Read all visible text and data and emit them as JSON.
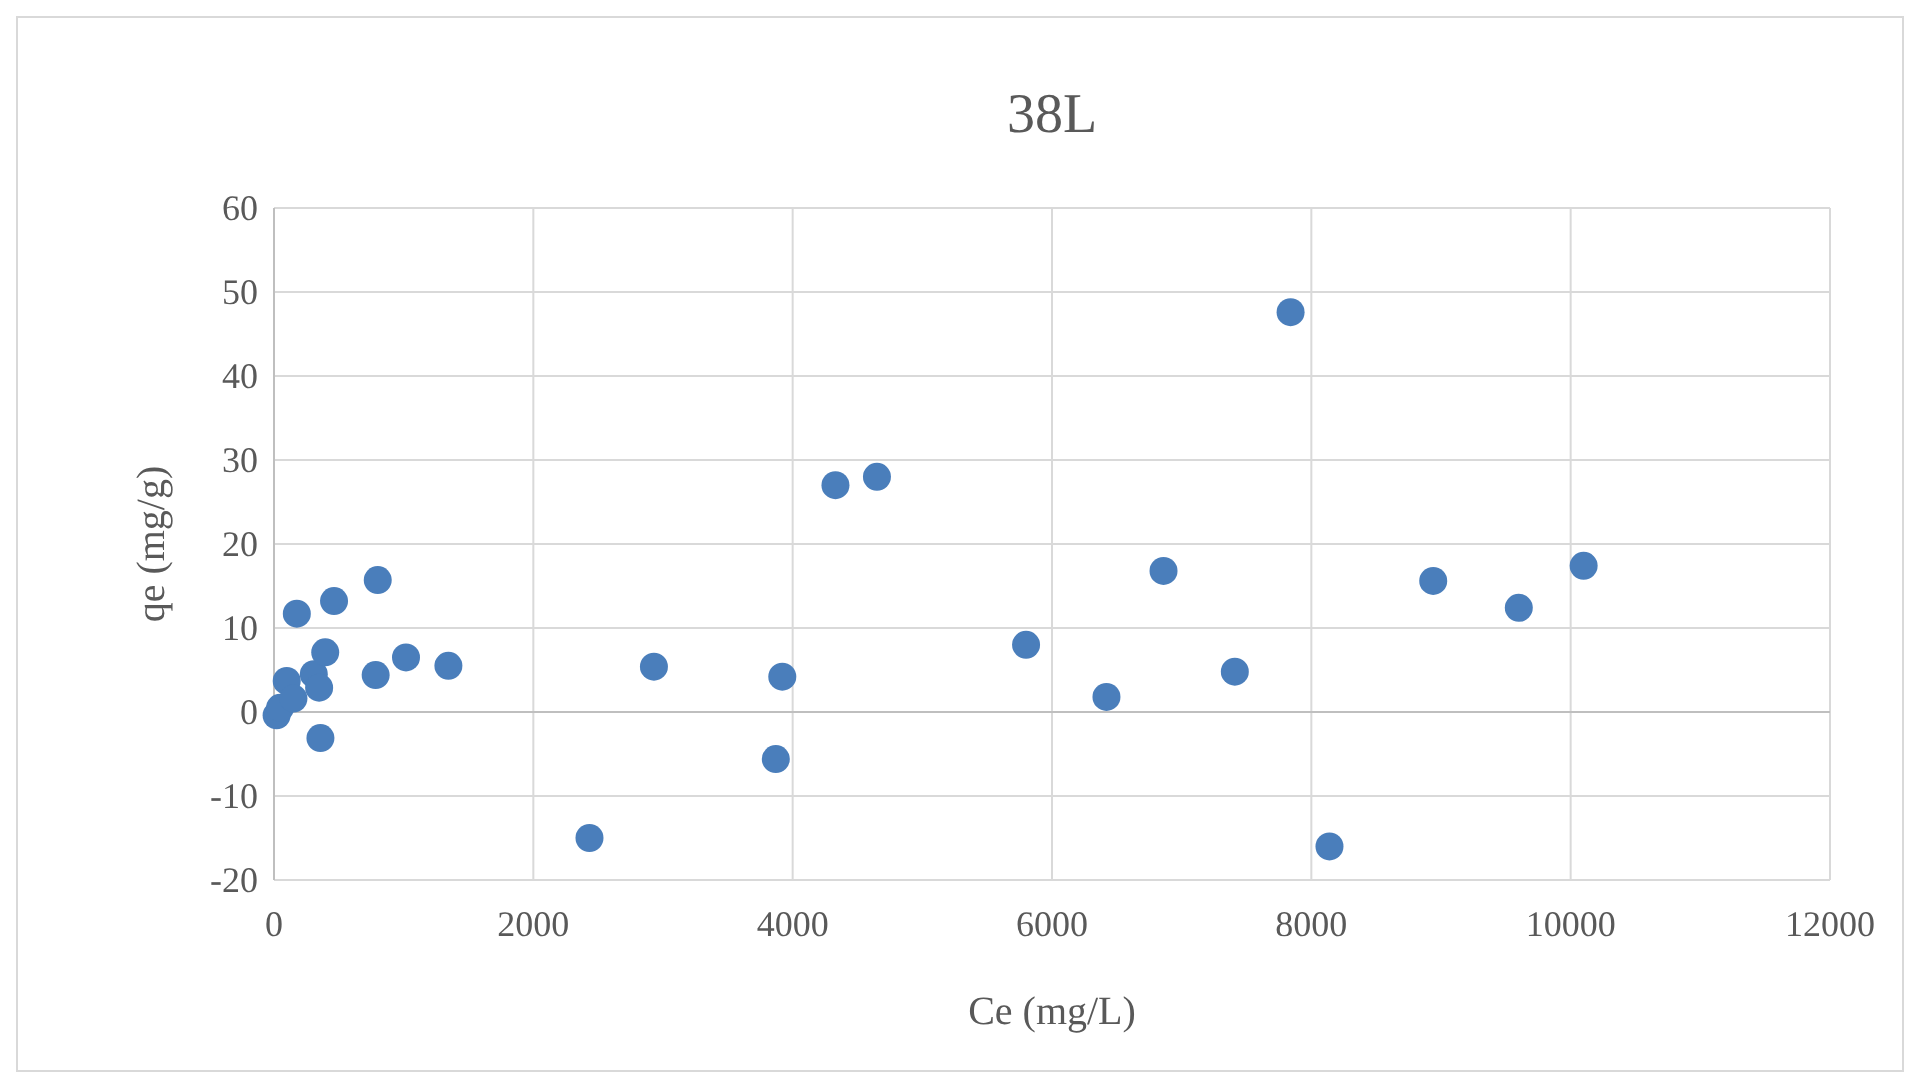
{
  "chart_data": {
    "type": "scatter",
    "title": "38L",
    "xlabel": "Ce (mg/L)",
    "ylabel": "qe (mg/g)",
    "x": [
      20,
      47,
      98,
      150,
      176,
      307,
      348,
      358,
      395,
      463,
      784,
      800,
      1018,
      1345,
      2433,
      2930,
      3870,
      3920,
      4330,
      4650,
      5800,
      6420,
      6860,
      7410,
      7840,
      8140,
      8940,
      9600,
      10100
    ],
    "series": [
      {
        "color": "#4a7ebb",
        "values": [
          -0.4,
          0.5,
          3.7,
          1.6,
          11.7,
          4.5,
          2.9,
          -3.1,
          7.1,
          13.2,
          4.4,
          15.7,
          6.5,
          5.5,
          -15,
          5.4,
          -5.6,
          4.2,
          27,
          28,
          8,
          1.8,
          16.8,
          4.8,
          47.6,
          -16,
          15.6,
          12.4,
          17.4
        ]
      }
    ],
    "xlim": [
      0,
      12000
    ],
    "xticks": [
      0,
      2000,
      4000,
      6000,
      8000,
      10000,
      12000
    ],
    "ylim": [
      -20,
      60
    ],
    "yticks": [
      -20,
      -10,
      0,
      10,
      20,
      30,
      40,
      50,
      60
    ],
    "grid": true,
    "marker": "circle"
  }
}
